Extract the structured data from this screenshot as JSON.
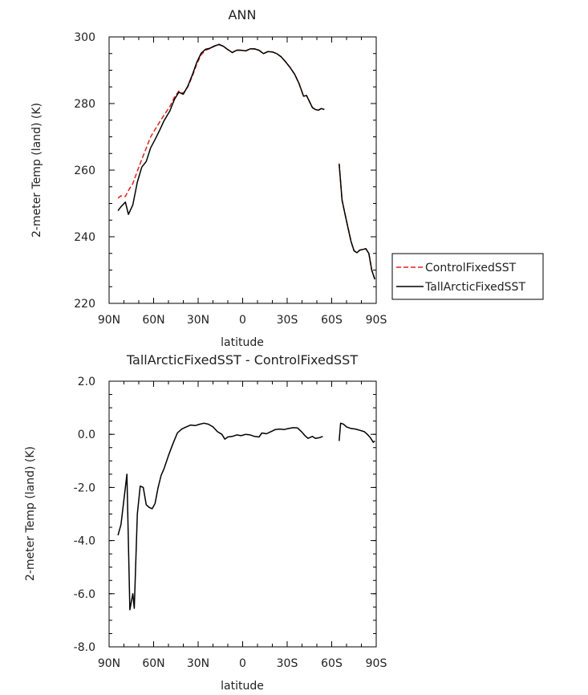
{
  "chart_data": [
    {
      "type": "line",
      "title": "ANN",
      "xlabel": "latitude",
      "ylabel": "2-meter Temp (land) (K)",
      "xlim": [
        90,
        -90
      ],
      "ylim": [
        220,
        300
      ],
      "x_ticks": [
        90,
        60,
        30,
        0,
        -30,
        -60,
        -90
      ],
      "x_tick_labels": [
        "90N",
        "60N",
        "30N",
        "0",
        "30S",
        "60S",
        "90S"
      ],
      "y_ticks": [
        220,
        240,
        260,
        280,
        300
      ],
      "y_tick_labels": [
        "220",
        "240",
        "260",
        "280",
        "300"
      ],
      "legend": {
        "placement": "right",
        "entries": [
          "ControlFixedSST",
          "TallArcticFixedSST"
        ]
      },
      "series": [
        {
          "name": "ControlFixedSST",
          "color": "#e0201c",
          "dash": "dashed",
          "segments": [
            [
              [
                84,
                251.6
              ],
              [
                82,
                252.3
              ],
              [
                79,
                252.1
              ],
              [
                77,
                253.9
              ],
              [
                74,
                256
              ],
              [
                71,
                259.7
              ],
              [
                68,
                263.2
              ],
              [
                65,
                266.6
              ],
              [
                62,
                270
              ],
              [
                59,
                272.2
              ],
              [
                56,
                274.4
              ],
              [
                53,
                276.5
              ],
              [
                49,
                279.1
              ],
              [
                46,
                281.9
              ],
              [
                43,
                283.7
              ],
              [
                40,
                283.1
              ],
              [
                37,
                285
              ],
              [
                34,
                288.1
              ],
              [
                31,
                291.8
              ],
              [
                28,
                294.6
              ],
              [
                25,
                296
              ],
              [
                22,
                296.5
              ],
              [
                19,
                297.2
              ],
              [
                16,
                297.8
              ],
              [
                13,
                297.2
              ],
              [
                10,
                296.2
              ],
              [
                7,
                295.3
              ],
              [
                4,
                296.1
              ],
              [
                1,
                296
              ],
              [
                -2,
                295.8
              ],
              [
                -5,
                296.4
              ],
              [
                -8,
                296.4
              ],
              [
                -11,
                296
              ],
              [
                -14,
                295
              ],
              [
                -17,
                295.6
              ],
              [
                -20,
                295.5
              ],
              [
                -23,
                295
              ],
              [
                -26,
                294
              ],
              [
                -29,
                292.5
              ],
              [
                -32,
                290.8
              ],
              [
                -35,
                288.8
              ],
              [
                -38,
                286
              ],
              [
                -41,
                282.2
              ],
              [
                -43,
                282.4
              ],
              [
                -45,
                280.6
              ],
              [
                -47,
                278.8
              ],
              [
                -49,
                278.2
              ],
              [
                -51,
                278
              ],
              [
                -53,
                278.5
              ],
              [
                -55,
                278.2
              ]
            ],
            [
              [
                -65,
                262
              ],
              [
                -67,
                251
              ],
              [
                -69,
                246.8
              ],
              [
                -71,
                242.6
              ],
              [
                -73,
                238.6
              ],
              [
                -75,
                235.8
              ],
              [
                -77,
                235.2
              ],
              [
                -79,
                236
              ],
              [
                -81,
                236.2
              ],
              [
                -83,
                236.4
              ],
              [
                -85,
                235
              ],
              [
                -87,
                230
              ],
              [
                -89,
                227.4
              ]
            ]
          ]
        },
        {
          "name": "TallArcticFixedSST",
          "color": "#000000",
          "dash": "solid",
          "segments": [
            [
              [
                84,
                247.8
              ],
              [
                82,
                249
              ],
              [
                79,
                250.4
              ],
              [
                77,
                246.7
              ],
              [
                74,
                249.6
              ],
              [
                71,
                256.4
              ],
              [
                68,
                260.9
              ],
              [
                65,
                262.6
              ],
              [
                62,
                266.7
              ],
              [
                59,
                269.2
              ],
              [
                56,
                271.9
              ],
              [
                53,
                274.8
              ],
              [
                49,
                277.8
              ],
              [
                46,
                281.2
              ],
              [
                43,
                283.4
              ],
              [
                40,
                282.8
              ],
              [
                37,
                285.2
              ],
              [
                34,
                288.5
              ],
              [
                31,
                292.3
              ],
              [
                28,
                295.1
              ],
              [
                25,
                296.3
              ],
              [
                22,
                296.6
              ],
              [
                19,
                297.3
              ],
              [
                16,
                297.7
              ],
              [
                13,
                297.2
              ],
              [
                10,
                296.2
              ],
              [
                7,
                295.3
              ],
              [
                4,
                296
              ],
              [
                1,
                296
              ],
              [
                -2,
                295.8
              ],
              [
                -5,
                296.4
              ],
              [
                -8,
                296.4
              ],
              [
                -11,
                296
              ],
              [
                -14,
                295
              ],
              [
                -17,
                295.6
              ],
              [
                -20,
                295.5
              ],
              [
                -23,
                295
              ],
              [
                -26,
                294
              ],
              [
                -29,
                292.5
              ],
              [
                -32,
                290.8
              ],
              [
                -35,
                288.8
              ],
              [
                -38,
                286
              ],
              [
                -41,
                282.2
              ],
              [
                -43,
                282.4
              ],
              [
                -45,
                280.6
              ],
              [
                -47,
                278.8
              ],
              [
                -49,
                278.2
              ],
              [
                -51,
                278
              ],
              [
                -53,
                278.5
              ],
              [
                -55,
                278.2
              ]
            ],
            [
              [
                -65,
                261.8
              ],
              [
                -67,
                251
              ],
              [
                -69,
                246.8
              ],
              [
                -71,
                242.6
              ],
              [
                -73,
                238.6
              ],
              [
                -75,
                235.8
              ],
              [
                -77,
                235.2
              ],
              [
                -79,
                236
              ],
              [
                -81,
                236.2
              ],
              [
                -83,
                236.4
              ],
              [
                -85,
                235
              ],
              [
                -87,
                230
              ],
              [
                -89,
                227.2
              ]
            ]
          ]
        }
      ]
    },
    {
      "type": "line",
      "title": "TallArcticFixedSST - ControlFixedSST",
      "xlabel": "latitude",
      "ylabel": "2-meter Temp (land) (K)",
      "xlim": [
        90,
        -90
      ],
      "ylim": [
        -8,
        2
      ],
      "x_ticks": [
        90,
        60,
        30,
        0,
        -30,
        -60,
        -90
      ],
      "x_tick_labels": [
        "90N",
        "60N",
        "30N",
        "0",
        "30S",
        "60S",
        "90S"
      ],
      "y_ticks": [
        -8,
        -6,
        -4,
        -2,
        0,
        2
      ],
      "y_tick_labels": [
        "-8.0",
        "-6.0",
        "-4.0",
        "-2.0",
        "0.0",
        "2.0"
      ],
      "series": [
        {
          "color": "#000000",
          "dash": "solid",
          "segments": [
            [
              [
                84,
                -3.8
              ],
              [
                82,
                -3.4
              ],
              [
                79,
                -2
              ],
              [
                78,
                -1.5
              ],
              [
                76,
                -6.6
              ],
              [
                74,
                -6
              ],
              [
                73,
                -6.55
              ],
              [
                71,
                -3
              ],
              [
                69,
                -1.95
              ],
              [
                67,
                -2
              ],
              [
                65,
                -2.65
              ],
              [
                63,
                -2.75
              ],
              [
                61,
                -2.8
              ],
              [
                59,
                -2.6
              ],
              [
                57,
                -2
              ],
              [
                55,
                -1.55
              ],
              [
                53,
                -1.3
              ],
              [
                50,
                -0.8
              ],
              [
                47,
                -0.35
              ],
              [
                44,
                0.05
              ],
              [
                41,
                0.2
              ],
              [
                38,
                0.28
              ],
              [
                35,
                0.35
              ],
              [
                32,
                0.33
              ],
              [
                29,
                0.38
              ],
              [
                26,
                0.42
              ],
              [
                23,
                0.38
              ],
              [
                20,
                0.28
              ],
              [
                17,
                0.1
              ],
              [
                14,
                0
              ],
              [
                12,
                -0.18
              ],
              [
                10,
                -0.1
              ],
              [
                7,
                -0.08
              ],
              [
                4,
                -0.02
              ],
              [
                1,
                -0.05
              ],
              [
                -2,
                0
              ],
              [
                -5,
                -0.02
              ],
              [
                -8,
                -0.08
              ],
              [
                -11,
                -0.1
              ],
              [
                -13,
                0.05
              ],
              [
                -16,
                0.02
              ],
              [
                -19,
                0.1
              ],
              [
                -22,
                0.18
              ],
              [
                -25,
                0.2
              ],
              [
                -28,
                0.18
              ],
              [
                -31,
                0.22
              ],
              [
                -34,
                0.25
              ],
              [
                -37,
                0.24
              ],
              [
                -40,
                0.08
              ],
              [
                -42,
                -0.05
              ],
              [
                -44,
                -0.15
              ],
              [
                -47,
                -0.08
              ],
              [
                -49,
                -0.15
              ],
              [
                -52,
                -0.12
              ],
              [
                -54,
                -0.08
              ]
            ],
            [
              [
                -65,
                -0.25
              ],
              [
                -66,
                0.42
              ],
              [
                -68,
                0.38
              ],
              [
                -70,
                0.28
              ],
              [
                -73,
                0.22
              ],
              [
                -76,
                0.2
              ],
              [
                -79,
                0.15
              ],
              [
                -82,
                0.1
              ],
              [
                -84,
                0
              ],
              [
                -86,
                -0.12
              ],
              [
                -88,
                -0.3
              ],
              [
                -89,
                -0.25
              ]
            ]
          ]
        }
      ]
    }
  ]
}
